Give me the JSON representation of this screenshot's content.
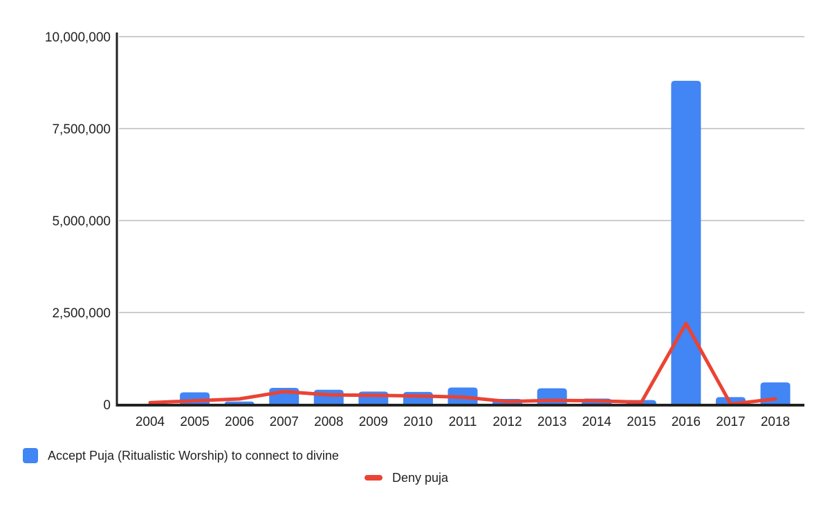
{
  "page": {
    "background_color": "#ffffff"
  },
  "chart_data": {
    "type": "bar",
    "subtype": "combo-bar-line",
    "title": "",
    "xlabel": "",
    "ylabel": "",
    "categories": [
      "2004",
      "2005",
      "2006",
      "2007",
      "2008",
      "2009",
      "2010",
      "2011",
      "2012",
      "2013",
      "2014",
      "2015",
      "2016",
      "2017",
      "2018"
    ],
    "series": [
      {
        "name": "Accept Puja (Ritualistic Worship) to connect to divine",
        "type": "bar",
        "color": "#4285F4",
        "values": [
          0,
          330000,
          80000,
          450000,
          400000,
          350000,
          340000,
          460000,
          150000,
          440000,
          160000,
          120000,
          8800000,
          200000,
          600000
        ]
      },
      {
        "name": "Deny puja",
        "type": "line",
        "color": "#EA4335",
        "values": [
          50000,
          100000,
          150000,
          350000,
          260000,
          250000,
          230000,
          200000,
          80000,
          110000,
          100000,
          60000,
          2200000,
          10000,
          150000
        ]
      }
    ],
    "ylim": [
      0,
      10000000
    ],
    "y_ticks": [
      0,
      2500000,
      5000000,
      7500000,
      10000000
    ],
    "y_tick_labels": [
      "0",
      "2,500,000",
      "5,000,000",
      "7,500,000",
      "10,000,000"
    ],
    "grid": "horizontal",
    "legend_position": "bottom",
    "colors": {
      "grid_line": "#cccccc",
      "axis_line": "#212121",
      "tick_label": "#222222",
      "legend_text": "#222222"
    }
  }
}
